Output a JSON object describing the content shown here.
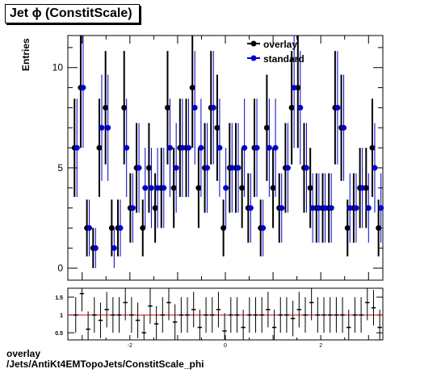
{
  "title": "Jet ϕ (ConstitScale)",
  "footer": {
    "line1": "overlay",
    "line2": "/Jets/AntiKt4EMTopoJets/ConstitScale_phi"
  },
  "colors": {
    "overlay": "#000000",
    "standard": "#0000cc",
    "ratio_line": "#cc0000"
  },
  "chart_data": [
    {
      "type": "scatter",
      "ylabel": "Entries",
      "xlim": [
        -3.3,
        3.3
      ],
      "ylim": [
        -0.6,
        11.6
      ],
      "yticks": [
        0,
        5,
        10
      ],
      "legend": {
        "placement": "top-right",
        "entries": [
          "overlay",
          "standard"
        ]
      },
      "bin_width": 0.13,
      "x_start": -3.2,
      "series": [
        {
          "name": "overlay",
          "values": [
            6,
            9,
            2,
            1,
            6,
            8,
            2,
            2,
            8,
            3,
            5,
            2,
            5,
            3,
            4,
            8,
            4,
            6,
            6,
            9,
            4,
            5,
            8,
            7,
            2,
            5,
            5,
            4,
            3,
            6,
            2,
            7,
            4,
            3,
            5,
            8,
            9,
            5,
            4,
            3,
            3,
            3,
            8,
            7,
            2,
            3,
            4,
            4,
            6,
            2
          ]
        },
        {
          "name": "standard",
          "values": [
            6,
            9,
            2,
            1,
            7,
            7,
            1,
            2,
            6,
            3,
            5,
            4,
            4,
            4,
            4,
            6,
            5,
            6,
            6,
            8,
            6,
            5,
            8,
            6,
            4,
            5,
            5,
            6,
            3,
            6,
            2,
            6,
            6,
            3,
            5,
            9,
            8,
            5,
            3,
            3,
            3,
            3,
            8,
            7,
            3,
            3,
            4,
            3,
            5,
            3
          ]
        }
      ]
    },
    {
      "type": "scatter",
      "xlim": [
        -3.3,
        3.3
      ],
      "ylim": [
        0.3,
        1.75
      ],
      "yticks": [
        0.5,
        1,
        1.5
      ],
      "xticks": [
        -2,
        0,
        2
      ],
      "reference_line": 1,
      "x_start": -3.2,
      "bin_width": 0.13,
      "values": [
        1.0,
        1.6,
        0.6,
        1.0,
        0.85,
        1.15,
        1.0,
        1.0,
        1.35,
        1.0,
        0.85,
        0.5,
        1.25,
        0.75,
        1.0,
        1.35,
        0.8,
        1.0,
        1.0,
        1.15,
        0.65,
        1.0,
        1.0,
        1.15,
        0.55,
        1.0,
        1.0,
        0.65,
        1.0,
        1.0,
        1.0,
        1.15,
        0.65,
        1.0,
        1.0,
        0.9,
        1.15,
        1.0,
        1.35,
        1.0,
        1.0,
        1.0,
        1.0,
        1.0,
        0.65,
        1.0,
        1.0,
        1.35,
        1.2,
        0.65
      ]
    }
  ]
}
